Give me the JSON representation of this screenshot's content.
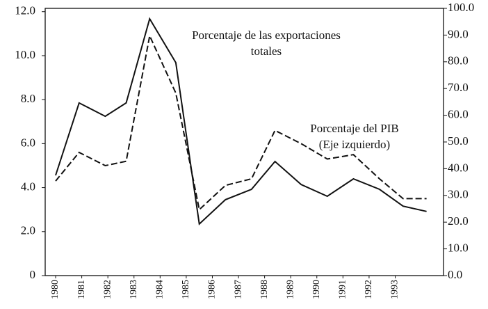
{
  "chart_data": {
    "type": "line",
    "x": [
      1980,
      1980.9,
      1981.9,
      1982.7,
      1983.6,
      1984.6,
      1985.5,
      1986.5,
      1987.5,
      1988.4,
      1989.4,
      1990.4,
      1991.4,
      1992.4,
      1993.3,
      1994.2
    ],
    "xlim": [
      1979.6,
      1994.85
    ],
    "xticks": [
      1980,
      1981,
      1982,
      1983,
      1984,
      1985,
      1986,
      1987,
      1988,
      1989,
      1990,
      1991,
      1992,
      1993
    ],
    "ylim": [
      0,
      12.15
    ],
    "yticks": [
      0,
      {
        "value": 2,
        "label": "2.0"
      },
      {
        "value": 4,
        "label": "4.0"
      },
      {
        "value": 6,
        "label": "6.0"
      },
      {
        "value": 8,
        "label": "8.0"
      },
      {
        "value": 10,
        "label": "10.0"
      },
      {
        "value": 12,
        "label": "12.0"
      }
    ],
    "y2lim": [
      0,
      100
    ],
    "y2ticks": [
      {
        "value": 0,
        "label": "0.0"
      },
      {
        "value": 10,
        "label": "10.0"
      },
      {
        "value": 20,
        "label": "20.0"
      },
      {
        "value": 30,
        "label": "30.0"
      },
      {
        "value": 40,
        "label": "40.0"
      },
      {
        "value": 50,
        "label": "50.0"
      },
      {
        "value": 60,
        "label": "60.0"
      },
      {
        "value": 70,
        "label": "70.0"
      },
      {
        "value": 80,
        "label": "80.0"
      },
      {
        "value": 90,
        "label": "90.0"
      },
      {
        "value": 100,
        "label": "100.0"
      }
    ],
    "series": [
      {
        "color": "#111111",
        "axis": "y2",
        "values": [
          37.5,
          64.6,
          59.6,
          64.6,
          96.1,
          79.7,
          19.3,
          28.4,
          32.3,
          42.7,
          34.1,
          29.7,
          36.2,
          32.3,
          26.0,
          24.0
        ]
      },
      {
        "color": "#111111",
        "dashed": true,
        "values": [
          4.3,
          5.6,
          5.0,
          5.2,
          10.9,
          8.3,
          3.0,
          4.1,
          4.4,
          6.6,
          6.0,
          5.3,
          5.5,
          4.4,
          3.5,
          3.5
        ]
      }
    ],
    "annotations": [
      {
        "lines": [
          "Porcentaje de las exportaciones",
          "totales"
        ]
      },
      {
        "lines": [
          "Porcentaje del PIB",
          "(Eje izquierdo)"
        ]
      }
    ]
  }
}
